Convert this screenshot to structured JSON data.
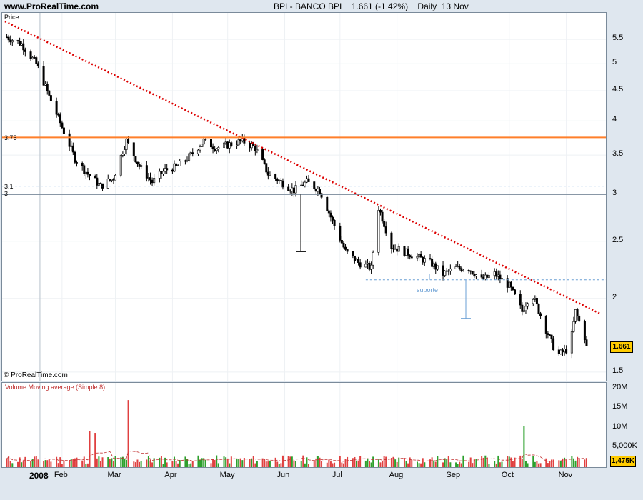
{
  "site": "www.ProRealTime.com",
  "header": "BPI - BANCO BPI    1.661 (-1.42%)    Daily  13 Nov",
  "price_panel_label": "Price",
  "copyright": "© ProRealTime.com",
  "volume_panel_label": "Volume Moving average (Simple 8)",
  "last_price": "1.661",
  "last_volume": "1,475K",
  "annotation": "suporte",
  "line_labels": {
    "resistance": "3.75",
    "level_31": "3.1",
    "level_3": "3"
  },
  "colors": {
    "up": "#2ca02c",
    "down": "#e04040",
    "trend": "#dd0000",
    "resistance": "#ff7f2a",
    "support": "#6a9fd4"
  },
  "chart_data": {
    "type": "candlestick",
    "price_axis": {
      "scale": "log",
      "ticks": [
        "1.5",
        "2",
        "2.5",
        "3",
        "3.5",
        "4",
        "4.5",
        "5",
        "5.5"
      ],
      "range": [
        1.45,
        6.1
      ]
    },
    "volume_axis": {
      "ticks": [
        "5,000K",
        "10M",
        "15M",
        "20M"
      ],
      "range": [
        0,
        21000000
      ]
    },
    "x_labels": [
      "2008",
      "Feb",
      "Mar",
      "Apr",
      "May",
      "Jun",
      "Jul",
      "Aug",
      "Sep",
      "Oct",
      "Nov"
    ],
    "close_points": [
      [
        "Jan 2",
        5.55
      ],
      [
        "Jan 10",
        5.4
      ],
      [
        "Jan 18",
        5.0
      ],
      [
        "Jan 25",
        4.4
      ],
      [
        "Feb 1",
        3.9
      ],
      [
        "Feb 8",
        3.45
      ],
      [
        "Feb 15",
        3.25
      ],
      [
        "Feb 22",
        3.1
      ],
      [
        "Feb 29",
        3.2
      ],
      [
        "Mar 7",
        3.7
      ],
      [
        "Mar 14",
        3.35
      ],
      [
        "Mar 21",
        3.15
      ],
      [
        "Mar 28",
        3.3
      ],
      [
        "Apr 4",
        3.35
      ],
      [
        "Apr 11",
        3.5
      ],
      [
        "Apr 18",
        3.7
      ],
      [
        "Apr 25",
        3.6
      ],
      [
        "May 2",
        3.65
      ],
      [
        "May 9",
        3.7
      ],
      [
        "May 16",
        3.6
      ],
      [
        "May 23",
        3.25
      ],
      [
        "May 30",
        3.15
      ],
      [
        "Jun 6",
        3.05
      ],
      [
        "Jun 13",
        3.15
      ],
      [
        "Jun 20",
        3.05
      ],
      [
        "Jun 27",
        2.7
      ],
      [
        "Jul 4",
        2.4
      ],
      [
        "Jul 11",
        2.3
      ],
      [
        "Jul 18",
        2.25
      ],
      [
        "Jul 22",
        2.85
      ],
      [
        "Jul 29",
        2.45
      ],
      [
        "Aug 5",
        2.4
      ],
      [
        "Aug 12",
        2.35
      ],
      [
        "Aug 19",
        2.3
      ],
      [
        "Aug 26",
        2.2
      ],
      [
        "Sep 2",
        2.25
      ],
      [
        "Sep 9",
        2.25
      ],
      [
        "Sep 16",
        2.15
      ],
      [
        "Sep 23",
        2.2
      ],
      [
        "Oct 1",
        2.1
      ],
      [
        "Oct 8",
        1.9
      ],
      [
        "Oct 13",
        2.05
      ],
      [
        "Oct 20",
        1.8
      ],
      [
        "Oct 27",
        1.6
      ],
      [
        "Nov 3",
        1.65
      ],
      [
        "Nov 6",
        1.9
      ],
      [
        "Nov 10",
        1.75
      ],
      [
        "Nov 13",
        1.661
      ]
    ],
    "lines": [
      {
        "kind": "trendline",
        "from": [
          "Jan 1",
          5.9
        ],
        "to": [
          "Nov 20",
          1.88
        ]
      },
      {
        "kind": "horizontal",
        "value": 3.75
      },
      {
        "kind": "horizontal",
        "value": 3.1,
        "style": "dashed"
      },
      {
        "kind": "horizontal",
        "value": 3.0
      },
      {
        "kind": "horizontal",
        "value": 2.15,
        "style": "dashed",
        "from": "Jul 15"
      }
    ]
  }
}
